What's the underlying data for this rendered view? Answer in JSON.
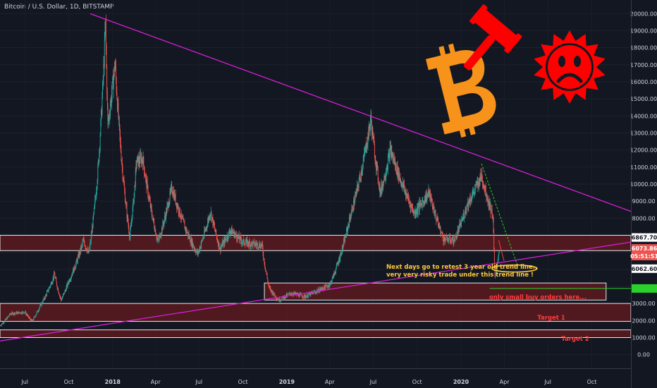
{
  "header": {
    "title": "Bitcoin / U.S. Dollar, 1D, BITSTAMP"
  },
  "colors": {
    "background": "#131722",
    "up": "#26a69a",
    "down": "#ef5350",
    "trendline": "#d41fd4",
    "zone_fill": "#5c1a1f",
    "zone_border": "#e8e8e8",
    "bitcoin_orange": "#f7931a",
    "sticker_red": "#ff0000",
    "axis_text": "#d1d4dc",
    "annotation_yellow": "#ffc83d",
    "annotation_red": "#ff3b3b"
  },
  "icons": [
    "bitcoin-logo-icon",
    "gavel-icon",
    "sad-sun-icon"
  ],
  "chart_data": {
    "type": "candlestick",
    "title": "Bitcoin / U.S. Dollar, 1D, BITSTAMP",
    "y_axis": {
      "min": -800,
      "max": 20800,
      "position": "right",
      "ticks": [
        "0.00",
        "1000.00",
        "2000.00",
        "3000.00",
        "4000.00",
        "5000.00",
        "6000.00",
        "7000.00",
        "8000.00",
        "9000.00",
        "10000.00",
        "11000.00",
        "12000.00",
        "13000.00",
        "14000.00",
        "15000.00",
        "16000.00",
        "17000.00",
        "18000.00",
        "19000.00",
        "20000.00"
      ]
    },
    "x_axis": {
      "min": "2017-05-10",
      "max": "2020-12-22",
      "ticks": [
        {
          "date": "2017-07-01",
          "label": "Jul",
          "bold": false
        },
        {
          "date": "2017-10-01",
          "label": "Oct",
          "bold": false
        },
        {
          "date": "2018-01-01",
          "label": "2018",
          "bold": true
        },
        {
          "date": "2018-04-01",
          "label": "Apr",
          "bold": false
        },
        {
          "date": "2018-07-01",
          "label": "Jul",
          "bold": false
        },
        {
          "date": "2018-10-01",
          "label": "Oct",
          "bold": false
        },
        {
          "date": "2019-01-01",
          "label": "2019",
          "bold": true
        },
        {
          "date": "2019-04-01",
          "label": "Apr",
          "bold": false
        },
        {
          "date": "2019-07-01",
          "label": "Jul",
          "bold": false
        },
        {
          "date": "2019-10-01",
          "label": "Oct",
          "bold": false
        },
        {
          "date": "2020-01-01",
          "label": "2020",
          "bold": true
        },
        {
          "date": "2020-04-01",
          "label": "Apr",
          "bold": false
        },
        {
          "date": "2020-07-01",
          "label": "Jul",
          "bold": false
        },
        {
          "date": "2020-10-01",
          "label": "Oct",
          "bold": false
        }
      ]
    },
    "price_path": [
      [
        "2017-05-10",
        1700
      ],
      [
        "2017-06-01",
        2400
      ],
      [
        "2017-07-01",
        2500
      ],
      [
        "2017-07-16",
        1950
      ],
      [
        "2017-08-01",
        2800
      ],
      [
        "2017-09-01",
        4700
      ],
      [
        "2017-09-15",
        3200
      ],
      [
        "2017-10-01",
        4300
      ],
      [
        "2017-11-01",
        6700
      ],
      [
        "2017-11-12",
        5900
      ],
      [
        "2017-12-01",
        10800
      ],
      [
        "2017-12-17",
        19400
      ],
      [
        "2017-12-22",
        13500
      ],
      [
        "2018-01-06",
        17100
      ],
      [
        "2018-02-06",
        6900
      ],
      [
        "2018-02-20",
        11300
      ],
      [
        "2018-03-05",
        11500
      ],
      [
        "2018-04-06",
        6600
      ],
      [
        "2018-05-05",
        9800
      ],
      [
        "2018-06-01",
        7500
      ],
      [
        "2018-06-28",
        5900
      ],
      [
        "2018-07-25",
        8400
      ],
      [
        "2018-08-14",
        6200
      ],
      [
        "2018-09-05",
        7300
      ],
      [
        "2018-10-01",
        6600
      ],
      [
        "2018-11-10",
        6400
      ],
      [
        "2018-11-25",
        3900
      ],
      [
        "2018-12-15",
        3200
      ],
      [
        "2019-01-10",
        3600
      ],
      [
        "2019-02-08",
        3400
      ],
      [
        "2019-04-01",
        4100
      ],
      [
        "2019-05-13",
        8000
      ],
      [
        "2019-06-26",
        13800
      ],
      [
        "2019-07-16",
        9500
      ],
      [
        "2019-08-06",
        12000
      ],
      [
        "2019-09-25",
        8300
      ],
      [
        "2019-10-26",
        9500
      ],
      [
        "2019-11-25",
        6800
      ],
      [
        "2019-12-18",
        6700
      ],
      [
        "2020-01-14",
        8800
      ],
      [
        "2020-02-13",
        10500
      ],
      [
        "2020-03-08",
        8100
      ],
      [
        "2020-03-12",
        4500
      ],
      [
        "2020-03-21",
        6200
      ]
    ],
    "trendlines": [
      {
        "name": "descending resistance",
        "from": [
          "2017-11-15",
          20000
        ],
        "to": [
          "2020-12-22",
          8400
        ]
      },
      {
        "name": "3 year ascending support",
        "from": [
          "2017-05-10",
          800
        ],
        "to": [
          "2020-12-22",
          6600
        ]
      }
    ],
    "zones": [
      {
        "from": 6100,
        "to": 7000,
        "x_from": "2017-05-10"
      },
      {
        "from": 3200,
        "to": 4200,
        "x_from": "2018-11-15",
        "x_to": "2020-10-31"
      },
      {
        "from": 1950,
        "to": 3000,
        "x_from": "2017-05-10",
        "label": "Target 1"
      },
      {
        "from": 1000,
        "to": 1450,
        "x_from": "2017-05-10",
        "label": "Target 2"
      }
    ],
    "annotations": [
      {
        "text": "Next days go to retest 3 year old trend line..",
        "color": "#ffc83d"
      },
      {
        "text": "very very risky trade under this trend line !",
        "color": "#ffc83d"
      },
      {
        "text": "only small buy orders here...",
        "color": "#ff3b3b"
      },
      {
        "text": "Target 1",
        "color": "#ff3b3b"
      },
      {
        "text": "Target 2",
        "color": "#ff3b3b"
      }
    ],
    "price_labels": [
      {
        "value": "6867.70",
        "price": 6867.7,
        "bg": "#ffffff",
        "fg": "#131722"
      },
      {
        "value": "6073.86",
        "price": 6230,
        "bg": "#ef5350",
        "fg": "#ffffff"
      },
      {
        "value": "05:51:51",
        "price": 5780,
        "bg": "#ef5350",
        "fg": "#ffffff"
      },
      {
        "value": "6062.60",
        "price": 5040,
        "bg": "#ffffff",
        "fg": "#131722"
      },
      {
        "value": "",
        "price": 3880,
        "bg": "#2bd12b",
        "fg": "#131722"
      }
    ]
  }
}
